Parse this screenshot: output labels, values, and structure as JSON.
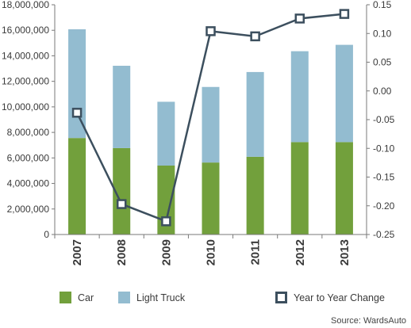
{
  "chart_data": {
    "type": "bar",
    "stacked": true,
    "categories": [
      "2007",
      "2008",
      "2009",
      "2010",
      "2011",
      "2012",
      "2013"
    ],
    "series": [
      {
        "name": "Car",
        "axis": "left",
        "color": "#72a03c",
        "values": [
          7560000,
          6770000,
          5400000,
          5640000,
          6090000,
          7240000,
          7240000
        ]
      },
      {
        "name": "Light Truck",
        "axis": "left",
        "color": "#93bcd0",
        "values": [
          8520000,
          6450000,
          5000000,
          5920000,
          6640000,
          7120000,
          7620000
        ]
      },
      {
        "name": "Year to Year Change",
        "type": "line",
        "axis": "right",
        "color": "#3c4f5e",
        "values": [
          -0.038,
          -0.197,
          -0.227,
          0.104,
          0.095,
          0.126,
          0.134
        ]
      }
    ],
    "y_left": {
      "min": 0,
      "max": 18000000,
      "step": 2000000,
      "ticks": [
        "0",
        "2,000,000",
        "4,000,000",
        "6,000,000",
        "8,000,000",
        "10,000,000",
        "12,000,000",
        "14,000,000",
        "16,000,000",
        "18,000,000"
      ]
    },
    "y_right": {
      "min": -0.25,
      "max": 0.15,
      "step": 0.05,
      "ticks": [
        "-0.25",
        "-0.20",
        "-0.15",
        "-0.10",
        "-0.05",
        "0.00",
        "0.05",
        "0.10",
        "0.15"
      ]
    },
    "grid": false,
    "legend_position": "bottom",
    "source": "Source: WardsAuto"
  }
}
